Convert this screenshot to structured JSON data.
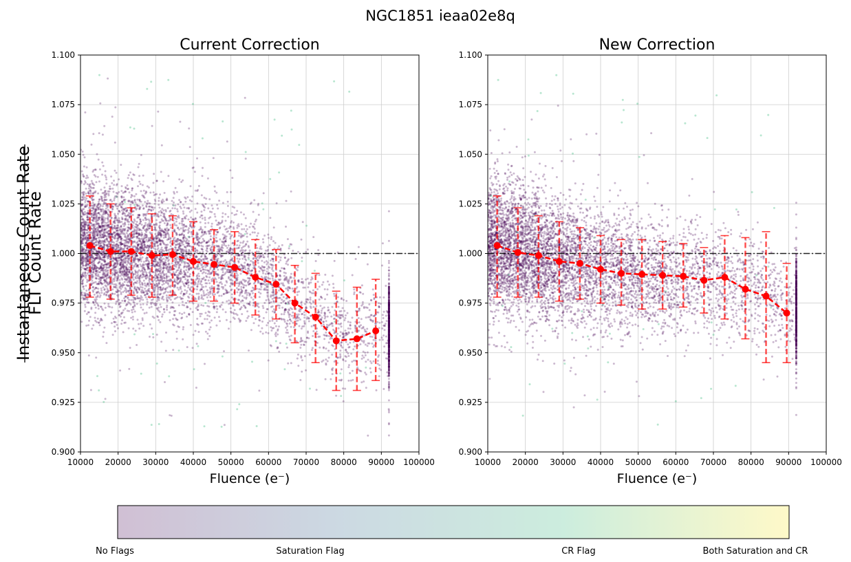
{
  "figure": {
    "title": "NGC1851 ieaa02e8q",
    "ylabel_numerator": "Instantaneous Count Rate",
    "ylabel_denominator": "FLT Count Rate"
  },
  "colorbar": {
    "labels": [
      "No Flags",
      "Saturation Flag",
      "CR Flag",
      "Both Saturation and CR"
    ],
    "colors": [
      "#440154",
      "#31688e",
      "#35b779",
      "#fde725"
    ],
    "alpha": 0.25
  },
  "colors": {
    "scatter_main": "#440154",
    "scatter_cr": "#35b779",
    "binned": "#ff0000",
    "reference_line": "#000000",
    "grid": "#cccccc"
  },
  "chart_data": [
    {
      "type": "scatter",
      "title": "Current Correction",
      "xlabel": "Fluence (e⁻)",
      "ylabel": "Instantaneous Count Rate / FLT Count Rate",
      "xlim": [
        10000,
        100000
      ],
      "ylim": [
        0.9,
        1.1
      ],
      "xticks": [
        10000,
        20000,
        30000,
        40000,
        50000,
        60000,
        70000,
        80000,
        90000,
        100000
      ],
      "yticks": [
        "0.900",
        "0.925",
        "0.950",
        "0.975",
        "1.000",
        "1.025",
        "1.050",
        "1.075",
        "1.100"
      ],
      "grid": true,
      "reference_y": 1.0,
      "binned_series": {
        "x": [
          12500,
          18000,
          23500,
          29000,
          34500,
          40000,
          45500,
          51000,
          56500,
          62000,
          67000,
          72500,
          78000,
          83500,
          88500
        ],
        "y": [
          1.004,
          1.001,
          1.001,
          0.999,
          0.9995,
          0.996,
          0.9945,
          0.993,
          0.988,
          0.9845,
          0.975,
          0.968,
          0.956,
          0.957,
          0.961
        ],
        "yerr_low": [
          0.978,
          0.977,
          0.979,
          0.978,
          0.979,
          0.976,
          0.976,
          0.975,
          0.969,
          0.967,
          0.955,
          0.945,
          0.931,
          0.931,
          0.936
        ],
        "yerr_high": [
          1.029,
          1.025,
          1.023,
          1.02,
          1.019,
          1.016,
          1.012,
          1.011,
          1.007,
          1.002,
          0.994,
          0.99,
          0.981,
          0.983,
          0.987
        ]
      },
      "scatter_model": {
        "points": 6500,
        "seed": 11,
        "cr_points": 70,
        "trend_x": [
          10000,
          30000,
          50000,
          60000,
          70000,
          80000,
          90000
        ],
        "trend_y": [
          1.005,
          0.999,
          0.994,
          0.986,
          0.97,
          0.958,
          0.962
        ]
      }
    },
    {
      "type": "scatter",
      "title": "New Correction",
      "xlabel": "Fluence (e⁻)",
      "xlim": [
        10000,
        100000
      ],
      "ylim": [
        0.9,
        1.1
      ],
      "xticks": [
        10000,
        20000,
        30000,
        40000,
        50000,
        60000,
        70000,
        80000,
        90000,
        100000
      ],
      "yticks": [
        "0.900",
        "0.925",
        "0.950",
        "0.975",
        "1.000",
        "1.025",
        "1.050",
        "1.075",
        "1.100"
      ],
      "grid": true,
      "reference_y": 1.0,
      "binned_series": {
        "x": [
          12500,
          18000,
          23500,
          29000,
          34500,
          40000,
          45500,
          51000,
          56500,
          62000,
          67500,
          73000,
          78500,
          84000,
          89500
        ],
        "y": [
          1.004,
          1.0005,
          0.999,
          0.996,
          0.995,
          0.992,
          0.99,
          0.9895,
          0.989,
          0.9885,
          0.9865,
          0.988,
          0.982,
          0.9785,
          0.97
        ],
        "yerr_low": [
          0.978,
          0.978,
          0.978,
          0.976,
          0.977,
          0.975,
          0.974,
          0.972,
          0.972,
          0.973,
          0.97,
          0.967,
          0.957,
          0.945,
          0.945
        ],
        "yerr_high": [
          1.029,
          1.023,
          1.019,
          1.016,
          1.013,
          1.009,
          1.007,
          1.007,
          1.006,
          1.005,
          1.003,
          1.009,
          1.008,
          1.011,
          0.995
        ]
      },
      "scatter_model": {
        "points": 6500,
        "seed": 23,
        "cr_points": 60,
        "trend_x": [
          10000,
          30000,
          50000,
          70000,
          80000,
          90000
        ],
        "trend_y": [
          1.005,
          0.996,
          0.99,
          0.987,
          0.981,
          0.972
        ]
      }
    }
  ]
}
